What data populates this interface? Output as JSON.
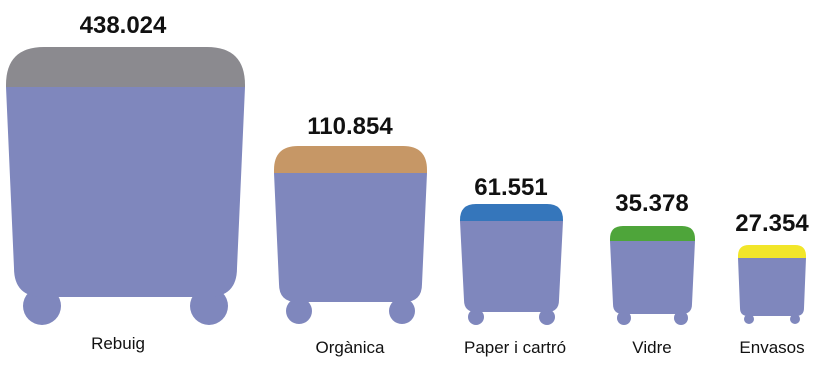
{
  "chart_data": {
    "type": "bar",
    "categories": [
      "Rebuig",
      "Orgànica",
      "Paper i cartró",
      "Vidre",
      "Envasos"
    ],
    "values": [
      438024,
      110854,
      61551,
      35378,
      27354
    ],
    "value_labels": [
      "438.024",
      "110.854",
      "61.551",
      "35.378",
      "27.354"
    ],
    "lid_colors": [
      "#8b8a8f",
      "#c69766",
      "#3576bb",
      "#4ea53a",
      "#f2e629"
    ],
    "body_color": "#7f87bd",
    "title": "",
    "xlabel": "",
    "ylabel": ""
  }
}
